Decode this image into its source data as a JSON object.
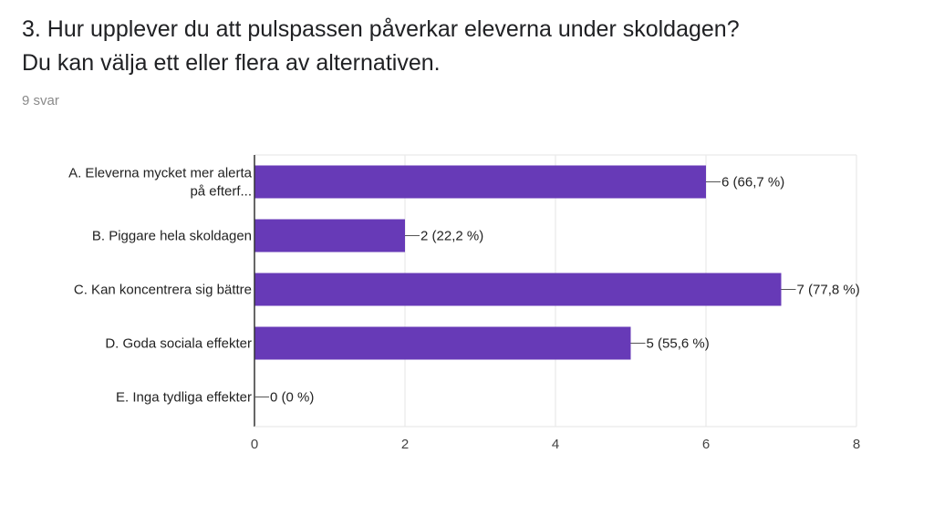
{
  "question": {
    "title_line1": "3. Hur upplever du att pulspassen påverkar eleverna under skoldagen?",
    "title_line2": "Du kan välja ett eller flera av alternativen.",
    "response_count": "9 svar"
  },
  "chart_data": {
    "type": "bar",
    "orientation": "horizontal",
    "categories": [
      [
        "A. Eleverna mycket mer alerta",
        "på efterf..."
      ],
      [
        "B. Piggare hela skoldagen"
      ],
      [
        "C. Kan koncentrera sig bättre"
      ],
      [
        "D. Goda sociala effekter"
      ],
      [
        "E. Inga tydliga effekter"
      ]
    ],
    "values": [
      6,
      2,
      7,
      5,
      0
    ],
    "data_labels": [
      "6 (66,7 %)",
      "2 (22,2 %)",
      "7 (77,8 %)",
      "5 (55,6 %)",
      "0 (0 %)"
    ],
    "xlim": [
      0,
      8
    ],
    "x_ticks": [
      0,
      2,
      4,
      6,
      8
    ],
    "grid": true,
    "bar_color": "#673ab7",
    "axis_color": "#333333",
    "grid_color": "#e6e6e6",
    "title": "",
    "xlabel": "",
    "ylabel": ""
  }
}
